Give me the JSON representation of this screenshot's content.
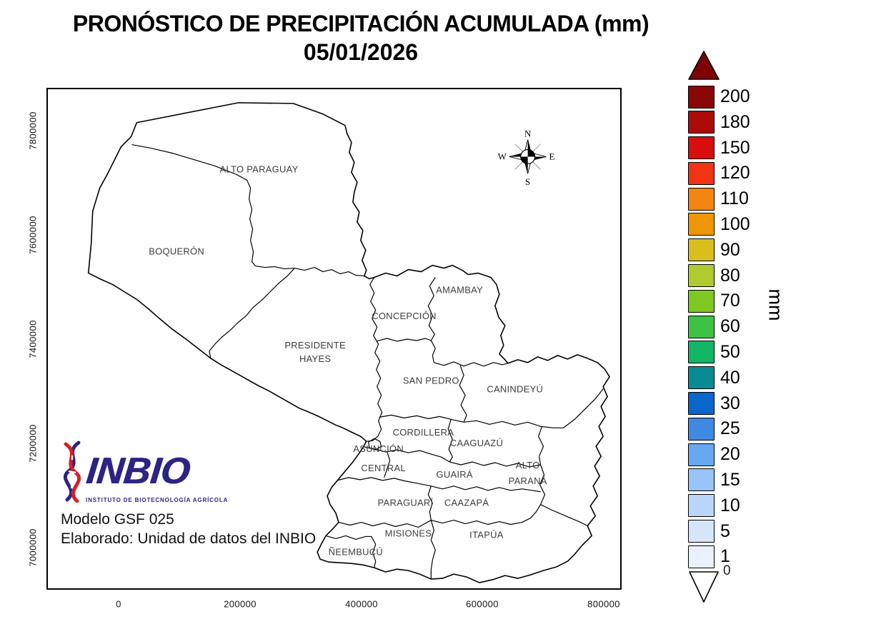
{
  "title": {
    "line1": "PRONÓSTICO DE PRECIPITACIÓN ACUMULADA (mm)",
    "line2": "05/01/2026"
  },
  "axes": {
    "x_ticks": [
      "0",
      "200000",
      "400000",
      "600000",
      "800000"
    ],
    "y_ticks": [
      "7800000",
      "7600000",
      "7400000",
      "7200000",
      "7000000"
    ]
  },
  "compass": {
    "n": "N",
    "e": "E",
    "s": "S",
    "w": "W"
  },
  "map": {
    "departments": [
      {
        "id": "alto-paraguay",
        "label": "ALTO PARAGUAY"
      },
      {
        "id": "boqueron",
        "label": "BOQUERÓN"
      },
      {
        "id": "amambay",
        "label": "AMAMBAY"
      },
      {
        "id": "concepcion",
        "label": "CONCEPCIÓN"
      },
      {
        "id": "presidente-hayes",
        "label": "PRESIDENTE HAYES",
        "lines": [
          "PRESIDENTE",
          "HAYES"
        ]
      },
      {
        "id": "san-pedro",
        "label": "SAN PEDRO"
      },
      {
        "id": "canindeyu",
        "label": "CANINDEYÚ"
      },
      {
        "id": "cordillera",
        "label": "CORDILLERA"
      },
      {
        "id": "asuncion",
        "label": "ASUNCIÓN"
      },
      {
        "id": "caaguazu",
        "label": "CAAGUAZÚ"
      },
      {
        "id": "central",
        "label": "CENTRAL"
      },
      {
        "id": "guaira",
        "label": "GUAIRÁ"
      },
      {
        "id": "alto-parana",
        "label": "ALTO PARANÁ",
        "lines": [
          "ALTO",
          "PARANÁ"
        ]
      },
      {
        "id": "paraguari",
        "label": "PARAGUARÍ"
      },
      {
        "id": "caazapa",
        "label": "CAAZAPÁ"
      },
      {
        "id": "misiones",
        "label": "MISIONES"
      },
      {
        "id": "itapua",
        "label": "ITAPÚA"
      },
      {
        "id": "neembucu",
        "label": "ÑEEMBUCÚ"
      }
    ]
  },
  "legend": {
    "unit": "mm",
    "zero_label": "0",
    "overflow_color": "#7c0404",
    "underflow_color": "#ffffff",
    "entries": [
      {
        "value": "200",
        "color": "#8a0606"
      },
      {
        "value": "180",
        "color": "#ad0a0a"
      },
      {
        "value": "150",
        "color": "#d90e0e"
      },
      {
        "value": "120",
        "color": "#f13414"
      },
      {
        "value": "110",
        "color": "#f58512"
      },
      {
        "value": "100",
        "color": "#f09604"
      },
      {
        "value": "90",
        "color": "#d8bf1e"
      },
      {
        "value": "80",
        "color": "#afcb2f"
      },
      {
        "value": "70",
        "color": "#7fc822"
      },
      {
        "value": "60",
        "color": "#3ec244"
      },
      {
        "value": "50",
        "color": "#12b565"
      },
      {
        "value": "40",
        "color": "#098b94"
      },
      {
        "value": "30",
        "color": "#0a66cb"
      },
      {
        "value": "25",
        "color": "#4089e2"
      },
      {
        "value": "20",
        "color": "#68a8f0"
      },
      {
        "value": "15",
        "color": "#97c3f6"
      },
      {
        "value": "10",
        "color": "#b9d6f9"
      },
      {
        "value": "5",
        "color": "#d5e6fb"
      },
      {
        "value": "1",
        "color": "#eaf1fd"
      }
    ]
  },
  "logo": {
    "name": "INBIO",
    "subtitle": "INSTITUTO DE BIOTECNOLOGÍA AGRÍCOLA",
    "brand_navy": "#2b2483",
    "brand_red": "#d42027"
  },
  "footer": {
    "line1": "Modelo GSF 025",
    "line2": "Elaborado: Unidad de datos del INBIO"
  }
}
